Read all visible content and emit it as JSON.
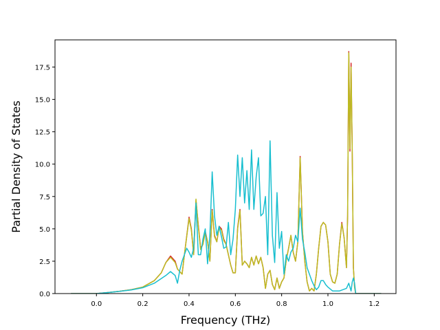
{
  "chart_data": {
    "type": "line",
    "xlabel": "Frequency (THz)",
    "ylabel": "Partial Density of States",
    "xlim": [
      -0.179,
      1.294
    ],
    "ylim": [
      0.0,
      19.6
    ],
    "xticks": [
      0.0,
      0.2,
      0.4,
      0.6,
      0.8,
      1.0,
      1.2
    ],
    "xtick_labels": [
      "0.0",
      "0.2",
      "0.4",
      "0.6",
      "0.8",
      "1.0",
      "1.2"
    ],
    "yticks": [
      0.0,
      2.5,
      5.0,
      7.5,
      10.0,
      12.5,
      15.0,
      17.5
    ],
    "ytick_labels": [
      "0.0",
      "2.5",
      "5.0",
      "7.5",
      "10.0",
      "12.5",
      "15.0",
      "17.5"
    ],
    "grid": false,
    "legend": false,
    "series_colors": [
      "#d62728",
      "#bcbd22",
      "#17becf"
    ],
    "series": [
      {
        "color": "#d62728",
        "x": [
          -0.11,
          0.0,
          0.05,
          0.1,
          0.15,
          0.2,
          0.25,
          0.28,
          0.3,
          0.32,
          0.34,
          0.35,
          0.37,
          0.38,
          0.4,
          0.41,
          0.42,
          0.43,
          0.44,
          0.45,
          0.46,
          0.47,
          0.48,
          0.49,
          0.5,
          0.51,
          0.52,
          0.53,
          0.54,
          0.55,
          0.56,
          0.57,
          0.58,
          0.59,
          0.6,
          0.61,
          0.62,
          0.63,
          0.64,
          0.65,
          0.66,
          0.67,
          0.68,
          0.69,
          0.7,
          0.71,
          0.72,
          0.73,
          0.74,
          0.75,
          0.76,
          0.77,
          0.78,
          0.79,
          0.8,
          0.81,
          0.82,
          0.83,
          0.84,
          0.85,
          0.86,
          0.87,
          0.88,
          0.89,
          0.9,
          0.91,
          0.92,
          0.93,
          0.94,
          0.95,
          0.96,
          0.97,
          0.98,
          0.99,
          1.0,
          1.01,
          1.02,
          1.03,
          1.04,
          1.05,
          1.06,
          1.07,
          1.08,
          1.085,
          1.09,
          1.095,
          1.1,
          1.105,
          1.11,
          1.115,
          1.12,
          1.13,
          1.15,
          1.2,
          1.23
        ],
        "y": [
          0.0,
          0.0,
          0.08,
          0.18,
          0.3,
          0.5,
          1.0,
          1.6,
          2.4,
          2.9,
          2.5,
          1.9,
          1.5,
          3.0,
          5.9,
          5.0,
          3.0,
          7.2,
          5.3,
          3.5,
          3.8,
          4.8,
          4.0,
          2.5,
          6.5,
          4.5,
          4.0,
          5.2,
          5.0,
          4.2,
          3.8,
          3.0,
          2.2,
          1.6,
          1.6,
          5.1,
          6.5,
          2.2,
          2.5,
          2.3,
          2.0,
          2.8,
          2.2,
          2.9,
          2.3,
          2.8,
          2.0,
          0.4,
          1.5,
          1.8,
          0.7,
          0.3,
          1.2,
          0.4,
          0.9,
          1.2,
          2.6,
          3.5,
          4.5,
          3.2,
          2.5,
          4.0,
          10.6,
          4.8,
          2.5,
          0.9,
          0.2,
          0.4,
          0.2,
          1.5,
          3.5,
          5.2,
          5.5,
          5.3,
          4.0,
          1.5,
          0.9,
          0.8,
          1.5,
          3.8,
          5.5,
          4.3,
          2.0,
          6.0,
          18.7,
          11.0,
          17.8,
          10.8,
          2.0,
          0.5,
          0.0,
          0.0,
          0.0,
          0.0,
          0.0
        ]
      },
      {
        "color": "#bcbd22",
        "x": [
          -0.11,
          0.0,
          0.05,
          0.1,
          0.15,
          0.2,
          0.25,
          0.28,
          0.3,
          0.32,
          0.34,
          0.35,
          0.37,
          0.38,
          0.4,
          0.41,
          0.42,
          0.43,
          0.44,
          0.45,
          0.46,
          0.47,
          0.48,
          0.49,
          0.5,
          0.51,
          0.52,
          0.53,
          0.54,
          0.55,
          0.56,
          0.57,
          0.58,
          0.59,
          0.6,
          0.61,
          0.62,
          0.63,
          0.64,
          0.65,
          0.66,
          0.67,
          0.68,
          0.69,
          0.7,
          0.71,
          0.72,
          0.73,
          0.74,
          0.75,
          0.76,
          0.77,
          0.78,
          0.79,
          0.8,
          0.81,
          0.82,
          0.83,
          0.84,
          0.85,
          0.86,
          0.87,
          0.88,
          0.89,
          0.9,
          0.91,
          0.92,
          0.93,
          0.94,
          0.95,
          0.96,
          0.97,
          0.98,
          0.99,
          1.0,
          1.01,
          1.02,
          1.03,
          1.04,
          1.05,
          1.06,
          1.07,
          1.08,
          1.085,
          1.09,
          1.095,
          1.1,
          1.105,
          1.11,
          1.115,
          1.12,
          1.13,
          1.15,
          1.2,
          1.23
        ],
        "y": [
          0.0,
          0.0,
          0.08,
          0.18,
          0.3,
          0.5,
          1.0,
          1.6,
          2.4,
          2.8,
          2.4,
          1.9,
          1.5,
          3.0,
          5.8,
          4.9,
          3.0,
          7.3,
          5.2,
          3.4,
          3.8,
          4.7,
          4.0,
          2.5,
          6.4,
          4.4,
          4.0,
          5.1,
          4.9,
          4.1,
          3.8,
          3.0,
          2.2,
          1.6,
          1.6,
          5.0,
          6.4,
          2.2,
          2.5,
          2.3,
          2.0,
          2.8,
          2.2,
          2.9,
          2.3,
          2.8,
          2.0,
          0.4,
          1.5,
          1.8,
          0.7,
          0.3,
          1.2,
          0.4,
          0.9,
          1.2,
          2.6,
          3.5,
          4.5,
          3.2,
          2.5,
          4.0,
          10.5,
          4.8,
          2.5,
          0.9,
          0.2,
          0.4,
          0.2,
          1.5,
          3.5,
          5.2,
          5.5,
          5.3,
          4.0,
          1.5,
          0.9,
          0.8,
          1.5,
          3.8,
          5.4,
          4.3,
          2.0,
          6.0,
          18.6,
          11.2,
          17.5,
          11.0,
          2.0,
          0.5,
          0.0,
          0.0,
          0.0,
          0.0,
          0.0
        ]
      },
      {
        "color": "#17becf",
        "x": [
          -0.11,
          0.0,
          0.05,
          0.1,
          0.15,
          0.2,
          0.25,
          0.3,
          0.32,
          0.34,
          0.35,
          0.36,
          0.37,
          0.38,
          0.39,
          0.4,
          0.41,
          0.42,
          0.43,
          0.44,
          0.45,
          0.46,
          0.47,
          0.48,
          0.49,
          0.5,
          0.51,
          0.52,
          0.53,
          0.54,
          0.55,
          0.56,
          0.57,
          0.58,
          0.59,
          0.6,
          0.61,
          0.62,
          0.63,
          0.64,
          0.65,
          0.66,
          0.67,
          0.68,
          0.69,
          0.7,
          0.71,
          0.72,
          0.73,
          0.74,
          0.75,
          0.76,
          0.77,
          0.78,
          0.79,
          0.8,
          0.81,
          0.82,
          0.83,
          0.84,
          0.85,
          0.86,
          0.87,
          0.88,
          0.89,
          0.9,
          0.91,
          0.92,
          0.93,
          0.94,
          0.95,
          0.96,
          0.97,
          0.98,
          0.99,
          1.0,
          1.02,
          1.05,
          1.08,
          1.09,
          1.1,
          1.105,
          1.11,
          1.115,
          1.12,
          1.15,
          1.23
        ],
        "y": [
          0.0,
          0.0,
          0.08,
          0.17,
          0.28,
          0.45,
          0.8,
          1.4,
          1.7,
          1.4,
          0.8,
          1.8,
          2.5,
          3.0,
          3.5,
          3.2,
          2.8,
          3.5,
          7.0,
          3.0,
          3.0,
          4.2,
          5.0,
          2.3,
          4.5,
          9.4,
          6.0,
          4.5,
          5.2,
          4.4,
          3.5,
          3.6,
          5.5,
          3.0,
          4.2,
          6.5,
          10.7,
          7.5,
          10.5,
          7.0,
          9.5,
          6.5,
          11.1,
          6.5,
          9.0,
          10.5,
          6.0,
          6.2,
          7.5,
          3.0,
          11.8,
          4.5,
          2.4,
          7.8,
          3.5,
          4.8,
          1.5,
          3.0,
          2.5,
          3.2,
          3.5,
          4.5,
          4.0,
          6.6,
          4.2,
          3.2,
          2.0,
          1.5,
          1.0,
          0.6,
          0.3,
          0.5,
          1.0,
          1.0,
          0.7,
          0.5,
          0.2,
          0.2,
          0.4,
          0.8,
          0.2,
          0.9,
          1.2,
          0.8,
          0.0,
          0.0,
          0.0
        ]
      }
    ]
  }
}
